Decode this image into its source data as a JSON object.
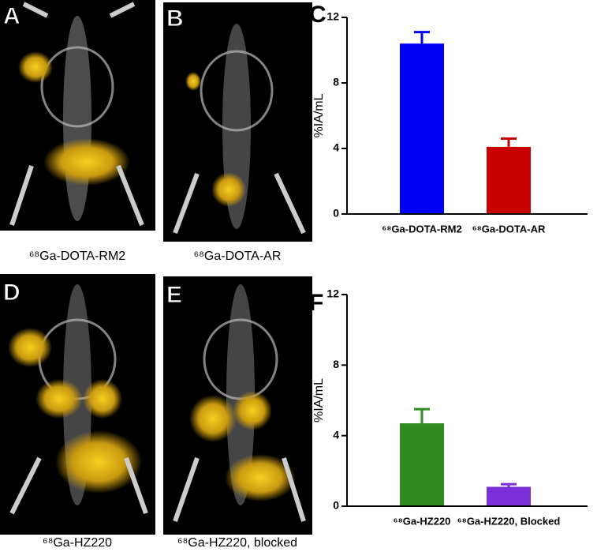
{
  "panels": [
    {
      "letter": "A",
      "caption": "⁶⁸Ga-DOTA-RM2"
    },
    {
      "letter": "B",
      "caption": "⁶⁸Ga-DOTA-AR"
    },
    {
      "letter": "D",
      "caption": "⁶⁸Ga-HZ220"
    },
    {
      "letter": "E",
      "caption": "⁶⁸Ga-HZ220, blocked"
    }
  ],
  "chart_data": [
    {
      "type": "bar",
      "letter": "C",
      "ylabel": "%IA/mL",
      "categories": [
        "⁶⁸Ga-DOTA-RM2",
        "⁶⁸Ga-DOTA-AR"
      ],
      "values": [
        10.4,
        4.1
      ],
      "errors": [
        0.7,
        0.5
      ],
      "colors": [
        "#0000f5",
        "#c80000"
      ],
      "ylim": [
        0,
        12
      ],
      "yticks": [
        0,
        4,
        8,
        12
      ]
    },
    {
      "type": "bar",
      "letter": "F",
      "ylabel": "%IA/mL",
      "categories": [
        "⁶⁸Ga-HZ220",
        "⁶⁸Ga-HZ220, Blocked"
      ],
      "values": [
        4.7,
        1.1
      ],
      "errors": [
        0.8,
        0.15
      ],
      "colors": [
        "#2e8b1e",
        "#7a2fd8"
      ],
      "ylim": [
        0,
        12
      ],
      "yticks": [
        0,
        4,
        8,
        12
      ]
    }
  ]
}
